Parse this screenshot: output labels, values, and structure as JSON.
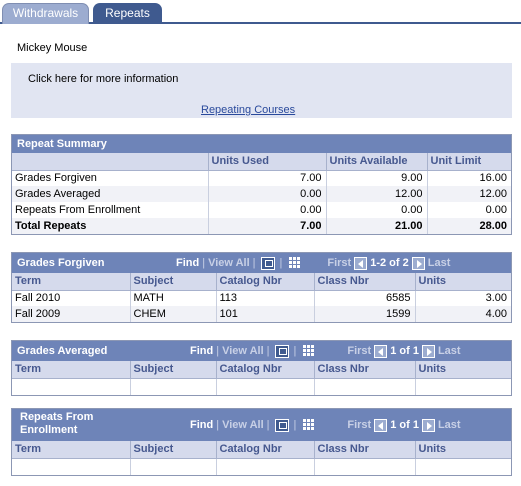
{
  "tabs": [
    {
      "label": "Withdrawals",
      "active": false
    },
    {
      "label": "Repeats",
      "active": true
    }
  ],
  "student_name": "Mickey Mouse",
  "info": {
    "text": "Click here for more information",
    "link": "Repeating Courses"
  },
  "repeat_summary": {
    "title": "Repeat Summary",
    "columns": [
      "",
      "Units Used",
      "Units Available",
      "Unit Limit"
    ],
    "rows": [
      {
        "label": "Grades Forgiven",
        "used": "7.00",
        "available": "9.00",
        "limit": "16.00"
      },
      {
        "label": "Grades Averaged",
        "used": "0.00",
        "available": "12.00",
        "limit": "12.00"
      },
      {
        "label": "Repeats From Enrollment",
        "used": "0.00",
        "available": "0.00",
        "limit": "0.00"
      },
      {
        "label": "Total Repeats",
        "used": "7.00",
        "available": "21.00",
        "limit": "28.00"
      }
    ]
  },
  "nav": {
    "find": "Find",
    "view_all": "View All",
    "first": "First",
    "last": "Last",
    "sep": "|"
  },
  "grades_forgiven": {
    "title": "Grades Forgiven",
    "range": "1-2 of 2",
    "columns": [
      "Term",
      "Subject",
      "Catalog Nbr",
      "Class Nbr",
      "Units"
    ],
    "rows": [
      {
        "term": "Fall 2010",
        "subject": "MATH",
        "catalog": "113",
        "class_nbr": "6585",
        "units": "3.00"
      },
      {
        "term": "Fall 2009",
        "subject": "CHEM",
        "catalog": "101",
        "class_nbr": "1599",
        "units": "4.00"
      }
    ]
  },
  "grades_averaged": {
    "title": "Grades Averaged",
    "range": "1 of 1",
    "columns": [
      "Term",
      "Subject",
      "Catalog Nbr",
      "Class Nbr",
      "Units"
    ]
  },
  "repeats_enrollment": {
    "title_line1": "Repeats From",
    "title_line2": "Enrollment",
    "range": "1 of 1",
    "columns": [
      "Term",
      "Subject",
      "Catalog Nbr",
      "Class Nbr",
      "Units"
    ]
  }
}
